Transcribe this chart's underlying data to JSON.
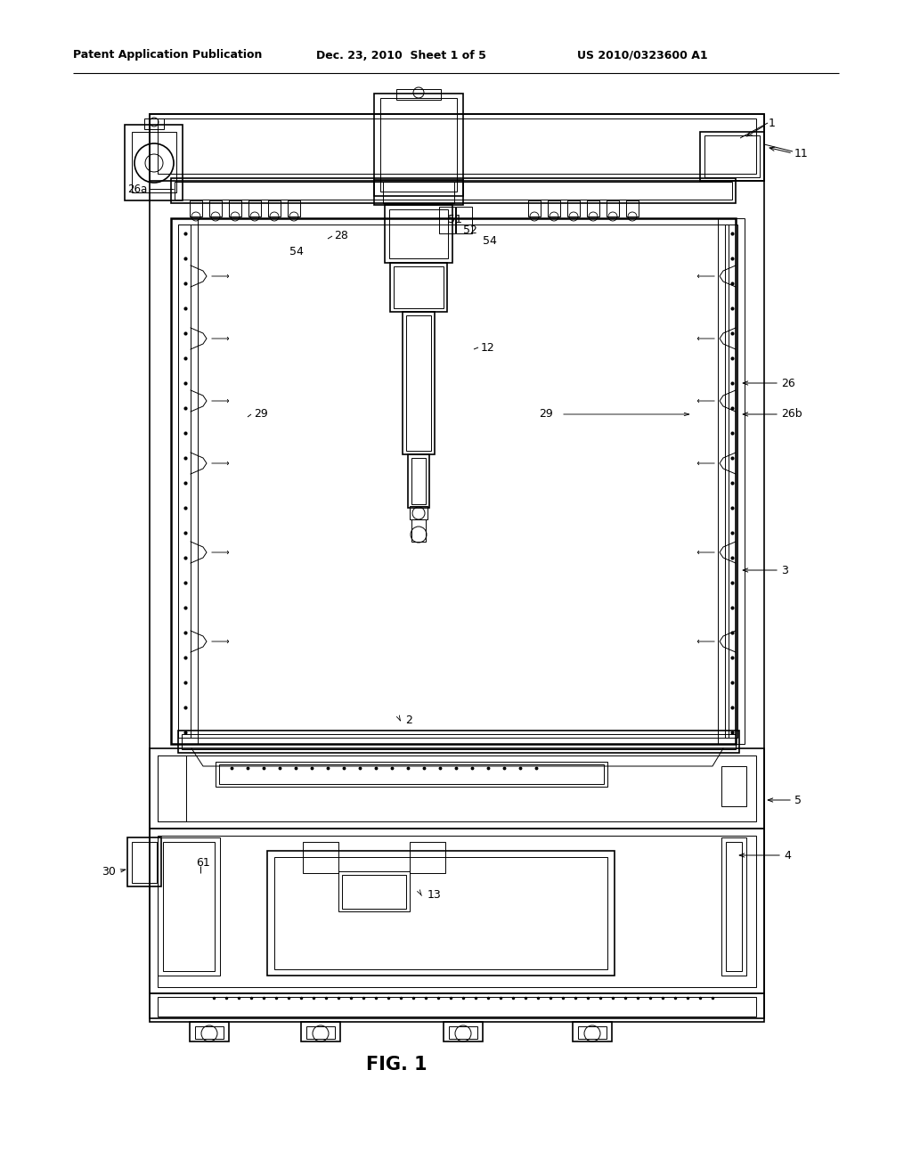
{
  "background_color": "#ffffff",
  "header_left": "Patent Application Publication",
  "header_mid": "Dec. 23, 2010  Sheet 1 of 5",
  "header_right": "US 2010/0323600 A1",
  "fig_label": "FIG. 1"
}
